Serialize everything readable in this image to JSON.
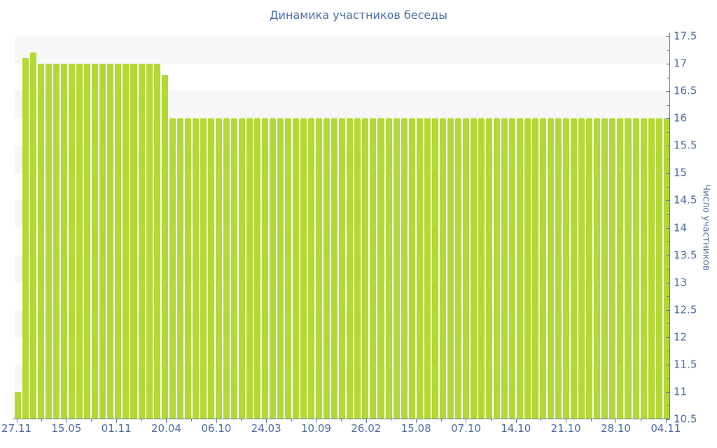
{
  "colors": {
    "bar": "#b2d935",
    "axis_line": "#5b77ad",
    "tick_text": "#4d6ca8",
    "title_text": "#4a6da9",
    "ylabel_text": "#5e74a3",
    "stripe_band": "#f7f7f7",
    "background": "#ffffff"
  },
  "chart_data": {
    "type": "bar",
    "title": "Динамика участников беседы",
    "xlabel": "",
    "ylabel": "Число участников",
    "ylim": [
      10.5,
      17.5
    ],
    "y_major_tick_step": 0.5,
    "y_minor_tick_step": 0.25,
    "y_tick_labels": [
      "17.5",
      "17",
      "16.5",
      "16",
      "15.5",
      "15",
      "14.5",
      "14",
      "13.5",
      "13",
      "12.5",
      "12",
      "11.5",
      "11",
      "10.5"
    ],
    "y_axis_side": "right",
    "grid": "alternating-horizontal-bands",
    "legend": "none",
    "x_tick_labels": [
      "27.11",
      "15.05",
      "01.11",
      "20.04",
      "06.10",
      "24.03",
      "10.09",
      "26.02",
      "15.08",
      "07.10",
      "14.10",
      "21.10",
      "28.10",
      "04.11"
    ],
    "values": [
      11,
      17.1,
      17.2,
      17,
      17,
      17,
      17,
      17,
      17,
      17,
      17,
      17,
      17,
      17,
      17,
      17,
      17,
      17,
      17,
      16.8,
      16,
      16,
      16,
      16,
      16,
      16,
      16,
      16,
      16,
      16,
      16,
      16,
      16,
      16,
      16,
      16,
      16,
      16,
      16,
      16,
      16,
      16,
      16,
      16,
      16,
      16,
      16,
      16,
      16,
      16,
      16,
      16,
      16,
      16,
      16,
      16,
      16,
      16,
      16,
      16,
      16,
      16,
      16,
      16,
      16,
      16,
      16,
      16,
      16,
      16,
      16,
      16,
      16,
      16,
      16,
      16,
      16,
      16,
      16,
      16,
      16,
      16,
      16,
      16,
      16
    ]
  }
}
